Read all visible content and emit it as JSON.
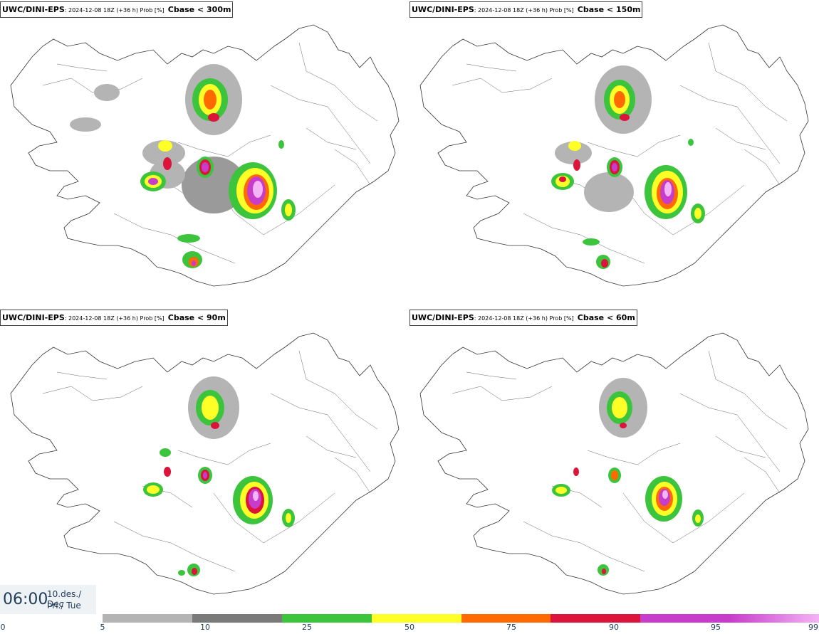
{
  "panels": [
    {
      "model": "UWC/DINI-EPS",
      "meta": ": 2024-12-08 18Z (+36 h) Prob [%]",
      "variable": "Cbase < 300m"
    },
    {
      "model": "UWC/DINI-EPS",
      "meta": ": 2024-12-08 18Z (+36 h) Prob [%]",
      "variable": "Cbase < 150m"
    },
    {
      "model": "UWC/DINI-EPS",
      "meta": ": 2024-12-08 18Z (+36 h) Prob [%]",
      "variable": "Cbase < 90m"
    },
    {
      "model": "UWC/DINI-EPS",
      "meta": ": 2024-12-08 18Z (+36 h) Prob [%]",
      "variable": "Cbase < 60m"
    }
  ],
  "time": {
    "clock": "06:00",
    "date": "10.des./ Dec",
    "day": "Þri./ Tue"
  },
  "legend": {
    "ticks": [
      "0",
      "5",
      "10",
      "25",
      "50",
      "75",
      "90",
      "95",
      "99"
    ],
    "colors": [
      "#b4b4b4",
      "#7a7a7a",
      "#3cc43c",
      "#ffff28",
      "#ff6a00",
      "#dc143c",
      "#c83ccc",
      "#f5b4f5"
    ]
  }
}
